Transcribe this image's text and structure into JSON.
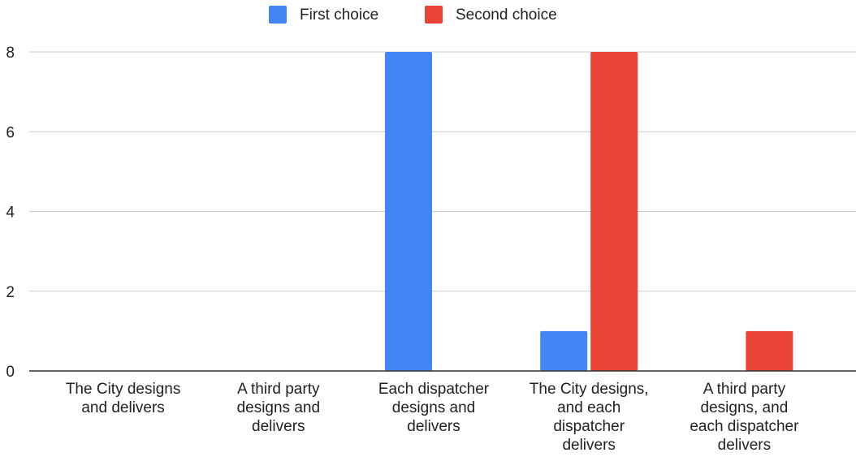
{
  "chart_data": {
    "type": "bar",
    "title": "",
    "xlabel": "",
    "ylabel": "",
    "ylim": [
      0,
      8
    ],
    "yticks": [
      0,
      2,
      4,
      6,
      8
    ],
    "grid": true,
    "legend_position": "top-center",
    "categories": [
      "The City designs and delivers",
      "A third party designs and delivers",
      "Each dispatcher designs and delivers",
      "The City designs, and each dispatcher delivers",
      "A third party designs, and each dispatcher delivers"
    ],
    "category_label_lines": [
      [
        "The City designs",
        "and delivers"
      ],
      [
        "A third party",
        "designs and",
        "delivers"
      ],
      [
        "Each dispatcher",
        "designs and",
        "delivers"
      ],
      [
        "The City designs,",
        "and each",
        "dispatcher",
        "delivers"
      ],
      [
        "A third party",
        "designs, and",
        "each dispatcher",
        "delivers"
      ]
    ],
    "series": [
      {
        "name": "First choice",
        "color": "#4285f4",
        "values": [
          0,
          0,
          8,
          1,
          0
        ]
      },
      {
        "name": "Second choice",
        "color": "#ea4335",
        "values": [
          0,
          0,
          0,
          8,
          1
        ]
      }
    ]
  },
  "colors": {
    "grid": "#cccccc",
    "axis": "#333333",
    "text": "#222222"
  }
}
